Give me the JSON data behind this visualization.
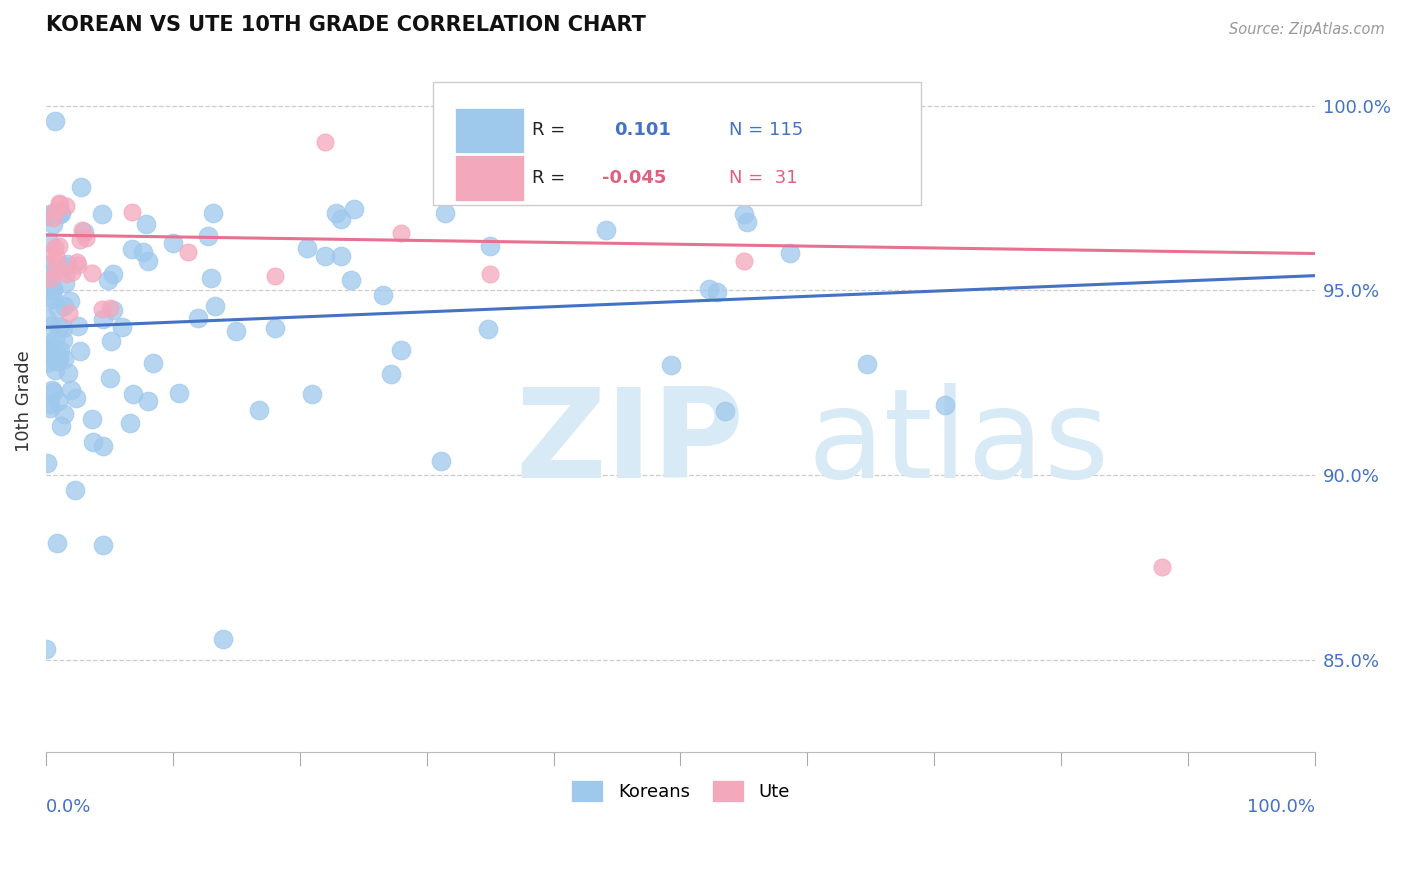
{
  "title": "KOREAN VS UTE 10TH GRADE CORRELATION CHART",
  "source": "Source: ZipAtlas.com",
  "ylabel": "10th Grade",
  "xlim": [
    0.0,
    100.0
  ],
  "ylim": [
    82.5,
    101.5
  ],
  "yticks": [
    85.0,
    90.0,
    95.0,
    100.0
  ],
  "ytick_labels": [
    "85.0%",
    "90.0%",
    "95.0%",
    "100.0%"
  ],
  "legend_blue_r": "0.101",
  "legend_blue_n": "115",
  "legend_pink_r": "-0.045",
  "legend_pink_n": "31",
  "blue_color": "#9EC8EC",
  "pink_color": "#F4A8BC",
  "blue_line_color": "#4472C4",
  "pink_line_color": "#E87090",
  "background_color": "#ffffff",
  "grid_color": "#cccccc",
  "text_color_blue": "#4472C4",
  "text_color_pink": "#E06080",
  "text_color_dark": "#333333",
  "watermark_color": "#D8EAF5",
  "blue_trend_x0": 0.0,
  "blue_trend_y0": 94.0,
  "blue_trend_x1": 100.0,
  "blue_trend_y1": 95.4,
  "pink_trend_x0": 0.0,
  "pink_trend_y0": 96.5,
  "pink_trend_x1": 100.0,
  "pink_trend_y1": 96.0
}
